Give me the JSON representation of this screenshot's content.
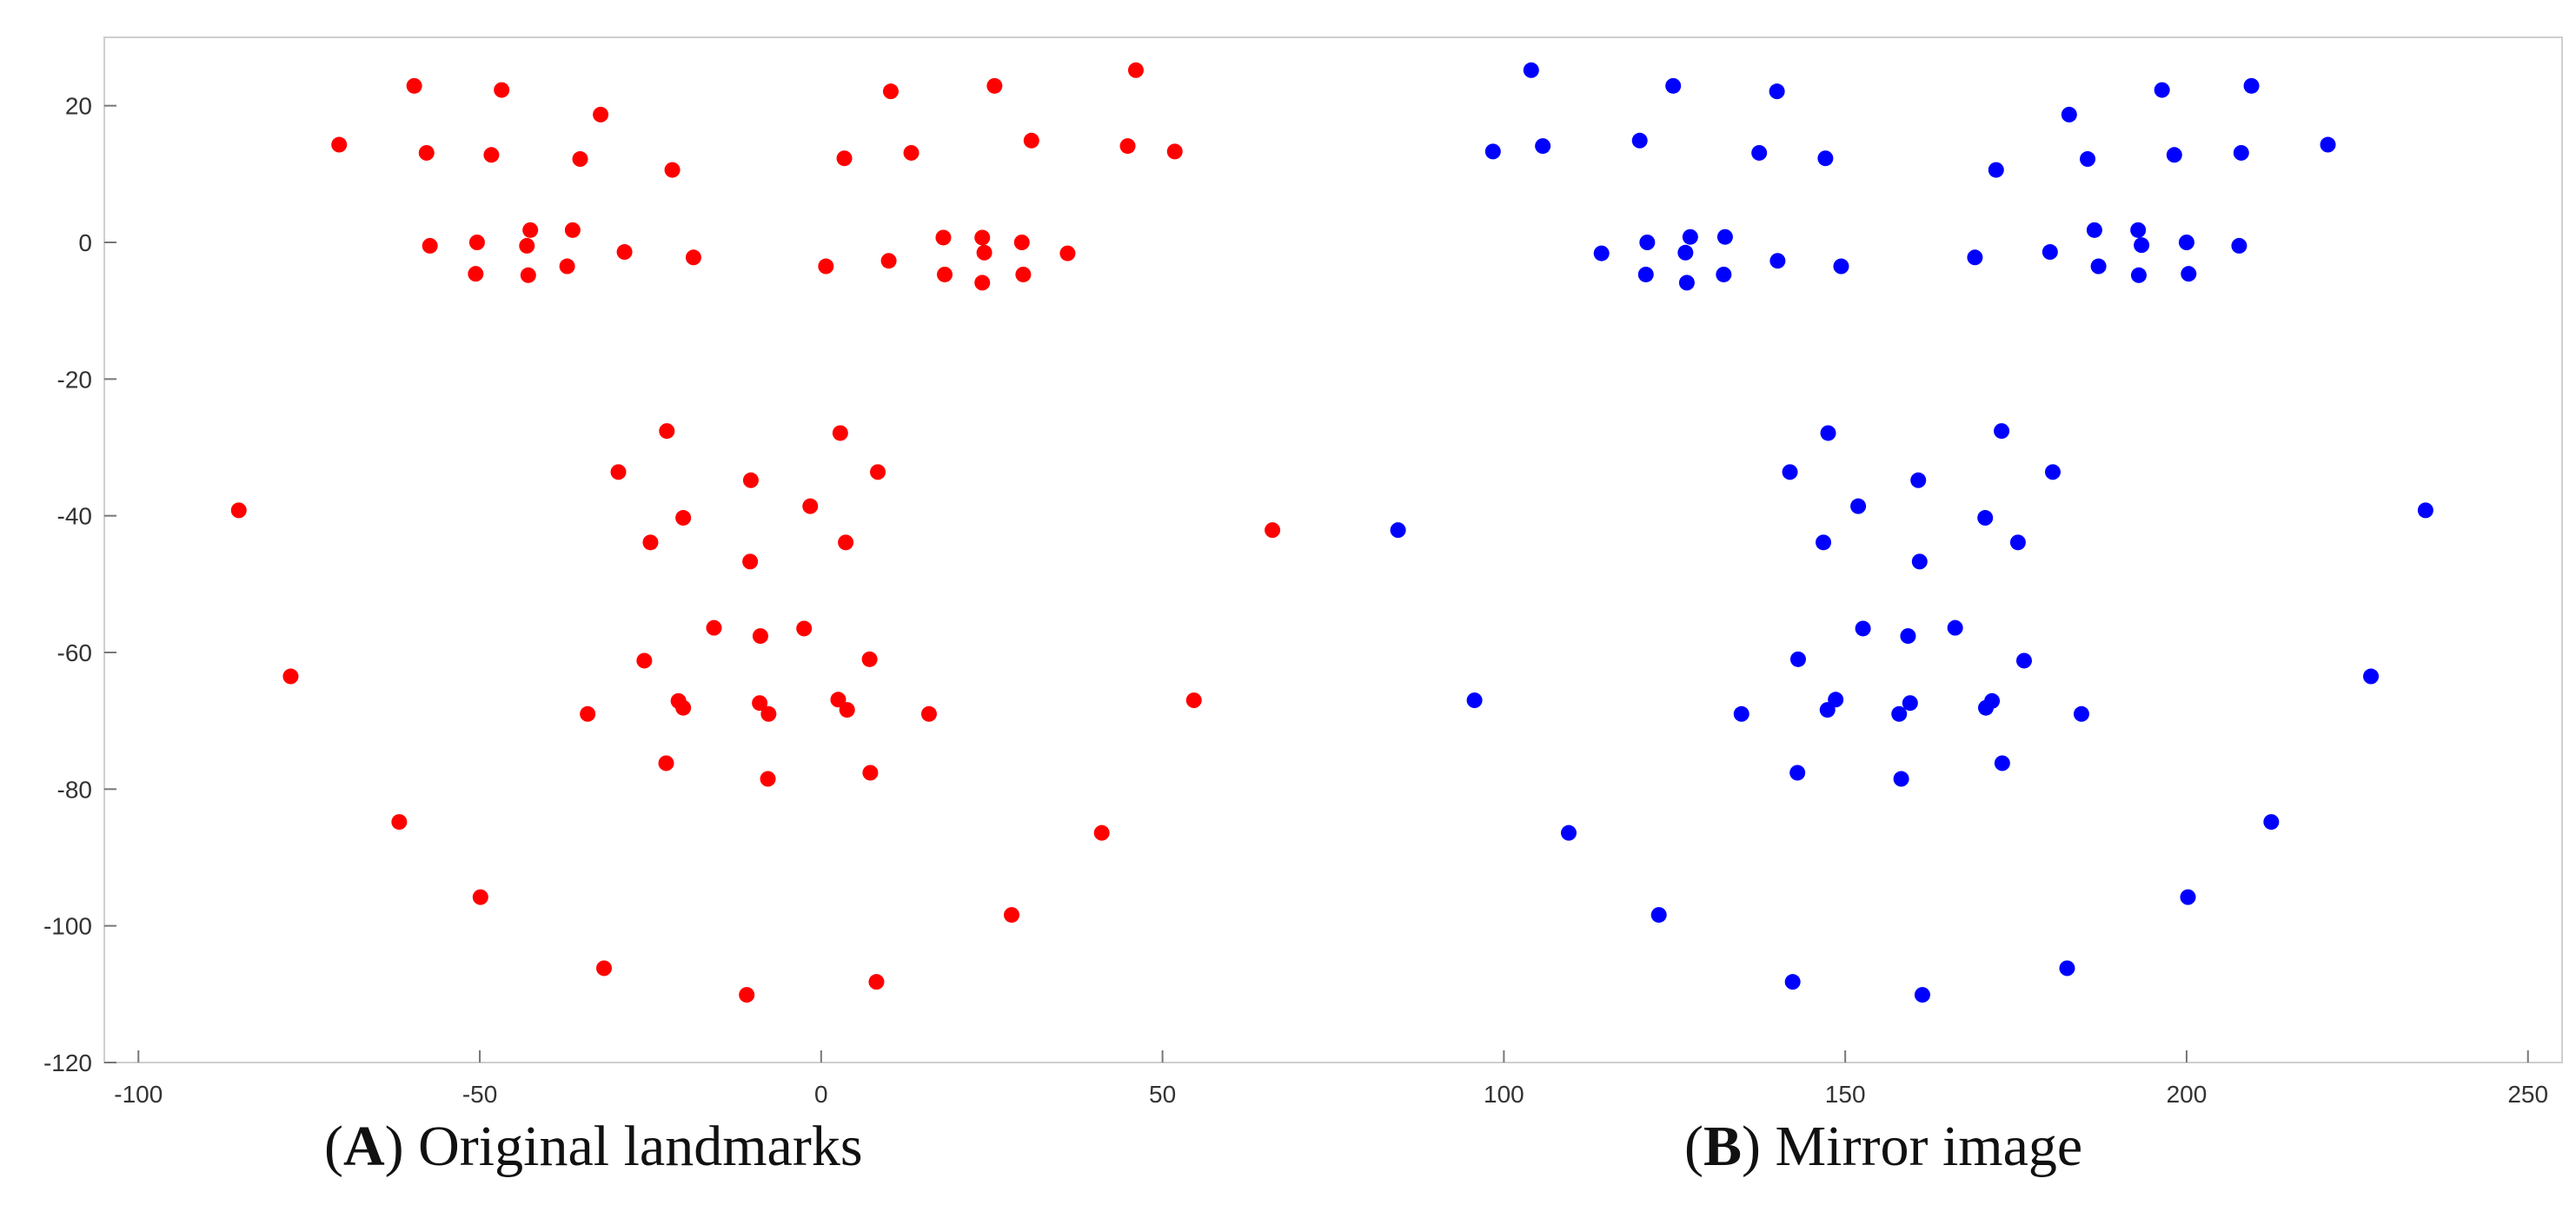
{
  "chart_data": {
    "type": "scatter",
    "xlim": [
      -105,
      255
    ],
    "ylim": [
      -120,
      30
    ],
    "xticks": [
      -100,
      -50,
      0,
      50,
      100,
      150,
      200,
      250
    ],
    "yticks": [
      20,
      0,
      -20,
      -40,
      -60,
      -80,
      -100,
      -120
    ],
    "grid": false,
    "legend": "none",
    "series": [
      {
        "color": "#ff0000",
        "points": [
          [
            -59.6,
            22.9
          ],
          [
            -46.8,
            22.3
          ],
          [
            -32.3,
            18.7
          ],
          [
            -70.6,
            14.3
          ],
          [
            -57.8,
            13.1
          ],
          [
            -48.3,
            12.8
          ],
          [
            -35.3,
            12.2
          ],
          [
            -21.8,
            10.6
          ],
          [
            -42.6,
            1.8
          ],
          [
            -36.4,
            1.8
          ],
          [
            -57.3,
            -0.5
          ],
          [
            -50.4,
            0
          ],
          [
            -43.1,
            -0.5
          ],
          [
            -28.8,
            -1.4
          ],
          [
            -18.7,
            -2.2
          ],
          [
            -37.2,
            -3.5
          ],
          [
            -50.6,
            -4.6
          ],
          [
            -42.9,
            -4.8
          ],
          [
            10.2,
            22.1
          ],
          [
            25.4,
            22.9
          ],
          [
            46.1,
            25.2
          ],
          [
            30.8,
            14.9
          ],
          [
            44.9,
            14.1
          ],
          [
            51.8,
            13.3
          ],
          [
            13.2,
            13.1
          ],
          [
            3.4,
            12.3
          ],
          [
            17.9,
            0.7
          ],
          [
            23.6,
            0.7
          ],
          [
            29.4,
            0
          ],
          [
            23.9,
            -1.5
          ],
          [
            36.1,
            -1.6
          ],
          [
            9.9,
            -2.7
          ],
          [
            0.7,
            -3.5
          ],
          [
            18.1,
            -4.7
          ],
          [
            29.6,
            -4.7
          ],
          [
            23.6,
            -5.9
          ],
          [
            -85.3,
            -39.2
          ],
          [
            -77.7,
            -63.5
          ],
          [
            -61.8,
            -84.8
          ],
          [
            -49.9,
            -95.8
          ],
          [
            -31.8,
            -106.2
          ],
          [
            -10.9,
            -110.1
          ],
          [
            8.1,
            -108.2
          ],
          [
            27.9,
            -98.4
          ],
          [
            41.1,
            -86.4
          ],
          [
            54.6,
            -67
          ],
          [
            66.1,
            -42.1
          ],
          [
            -22.6,
            -27.6
          ],
          [
            2.8,
            -27.9
          ],
          [
            -29.7,
            -33.6
          ],
          [
            8.3,
            -33.6
          ],
          [
            -10.3,
            -34.8
          ],
          [
            -1.6,
            -38.6
          ],
          [
            -20.2,
            -40.3
          ],
          [
            -25,
            -43.9
          ],
          [
            3.6,
            -43.9
          ],
          [
            -10.4,
            -46.7
          ],
          [
            -15.7,
            -56.4
          ],
          [
            -2.5,
            -56.5
          ],
          [
            -8.9,
            -57.6
          ],
          [
            -25.9,
            -61.2
          ],
          [
            7.1,
            -61
          ],
          [
            -20.9,
            -67.1
          ],
          [
            -20.2,
            -68.1
          ],
          [
            -9,
            -67.4
          ],
          [
            -7.7,
            -69
          ],
          [
            2.5,
            -66.9
          ],
          [
            3.8,
            -68.4
          ],
          [
            -34.2,
            -69
          ],
          [
            15.8,
            -69
          ],
          [
            -22.7,
            -76.2
          ],
          [
            7.2,
            -77.6
          ],
          [
            -7.8,
            -78.5
          ]
        ]
      },
      {
        "color": "#0000ff",
        "points": [
          [
            104,
            25.2
          ],
          [
            124.8,
            22.9
          ],
          [
            140,
            22.1
          ],
          [
            98.4,
            13.3
          ],
          [
            105.7,
            14.1
          ],
          [
            119.9,
            14.9
          ],
          [
            137.4,
            13.1
          ],
          [
            147.1,
            12.3
          ],
          [
            127.3,
            0.8
          ],
          [
            132.4,
            0.8
          ],
          [
            121,
            0
          ],
          [
            126.6,
            -1.5
          ],
          [
            140.1,
            -2.7
          ],
          [
            149.4,
            -3.5
          ],
          [
            114.3,
            -1.6
          ],
          [
            120.8,
            -4.7
          ],
          [
            126.8,
            -5.9
          ],
          [
            132.2,
            -4.7
          ],
          [
            182.8,
            18.7
          ],
          [
            196.4,
            22.3
          ],
          [
            209.5,
            22.9
          ],
          [
            220.7,
            14.3
          ],
          [
            198.2,
            12.8
          ],
          [
            208,
            13.1
          ],
          [
            185.5,
            12.2
          ],
          [
            172.1,
            10.6
          ],
          [
            186.5,
            1.8
          ],
          [
            192.9,
            1.8
          ],
          [
            193.4,
            -0.4
          ],
          [
            200,
            0
          ],
          [
            207.7,
            -0.5
          ],
          [
            169,
            -2.2
          ],
          [
            180,
            -1.4
          ],
          [
            187.1,
            -3.5
          ],
          [
            200.3,
            -4.6
          ],
          [
            193,
            -4.8
          ],
          [
            84.5,
            -42.1
          ],
          [
            95.7,
            -67
          ],
          [
            109.5,
            -86.4
          ],
          [
            122.7,
            -98.4
          ],
          [
            142.3,
            -108.2
          ],
          [
            161.3,
            -110.1
          ],
          [
            182.5,
            -106.2
          ],
          [
            200.2,
            -95.8
          ],
          [
            212.4,
            -84.8
          ],
          [
            227,
            -63.5
          ],
          [
            235,
            -39.2
          ],
          [
            147.5,
            -27.9
          ],
          [
            172.9,
            -27.6
          ],
          [
            141.9,
            -33.6
          ],
          [
            180.4,
            -33.6
          ],
          [
            160.7,
            -34.8
          ],
          [
            151.9,
            -38.6
          ],
          [
            170.5,
            -40.3
          ],
          [
            146.8,
            -43.9
          ],
          [
            175.3,
            -43.9
          ],
          [
            160.9,
            -46.7
          ],
          [
            152.6,
            -56.5
          ],
          [
            159.2,
            -57.6
          ],
          [
            166.1,
            -56.4
          ],
          [
            143.1,
            -61
          ],
          [
            176.2,
            -61.2
          ],
          [
            148.6,
            -66.9
          ],
          [
            147.4,
            -68.4
          ],
          [
            159.5,
            -67.4
          ],
          [
            157.9,
            -69
          ],
          [
            171.5,
            -67.1
          ],
          [
            170.6,
            -68.1
          ],
          [
            134.8,
            -69
          ],
          [
            184.6,
            -69
          ],
          [
            143,
            -77.6
          ],
          [
            173,
            -76.2
          ],
          [
            158.2,
            -78.5
          ]
        ]
      }
    ]
  },
  "captions": {
    "a": {
      "letter": "A",
      "text": "Original landmarks"
    },
    "b": {
      "letter": "B",
      "text": "Mirror image"
    }
  }
}
